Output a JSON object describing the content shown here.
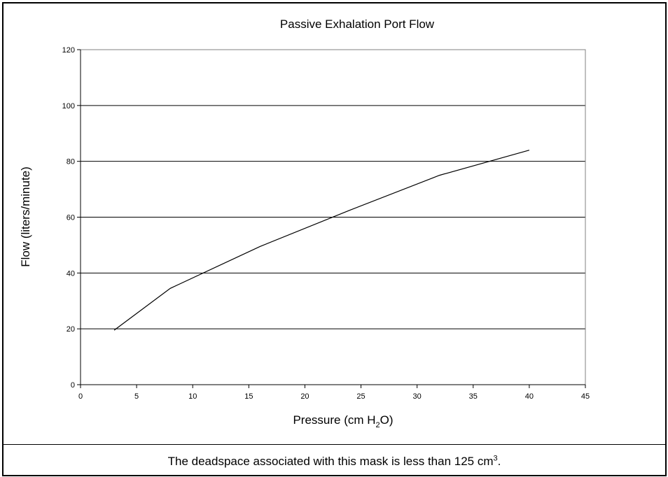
{
  "chart_data": {
    "type": "line",
    "title": "Passive Exhalation Port Flow",
    "xlabel_parts": {
      "before": "Pressure (cm H",
      "sub": "2",
      "after": "O)"
    },
    "ylabel": "Flow (liters/minute)",
    "xlim": [
      0,
      45
    ],
    "ylim": [
      0,
      120
    ],
    "x_ticks": [
      0,
      5,
      10,
      15,
      20,
      25,
      30,
      35,
      40,
      45
    ],
    "y_ticks": [
      0,
      20,
      40,
      60,
      80,
      100,
      120
    ],
    "grid": {
      "horizontal": true,
      "vertical": false
    },
    "legend": "none",
    "series": [
      {
        "color": "#000000",
        "points": [
          {
            "x": 3,
            "y": 19.5
          },
          {
            "x": 8,
            "y": 34.5
          },
          {
            "x": 16,
            "y": 49.5
          },
          {
            "x": 24,
            "y": 62.5
          },
          {
            "x": 32,
            "y": 75
          },
          {
            "x": 40,
            "y": 84
          }
        ]
      }
    ]
  },
  "caption": {
    "text": "The deadspace associated with this mask is less than 125 cm",
    "superscript": "3",
    "suffix": "."
  }
}
